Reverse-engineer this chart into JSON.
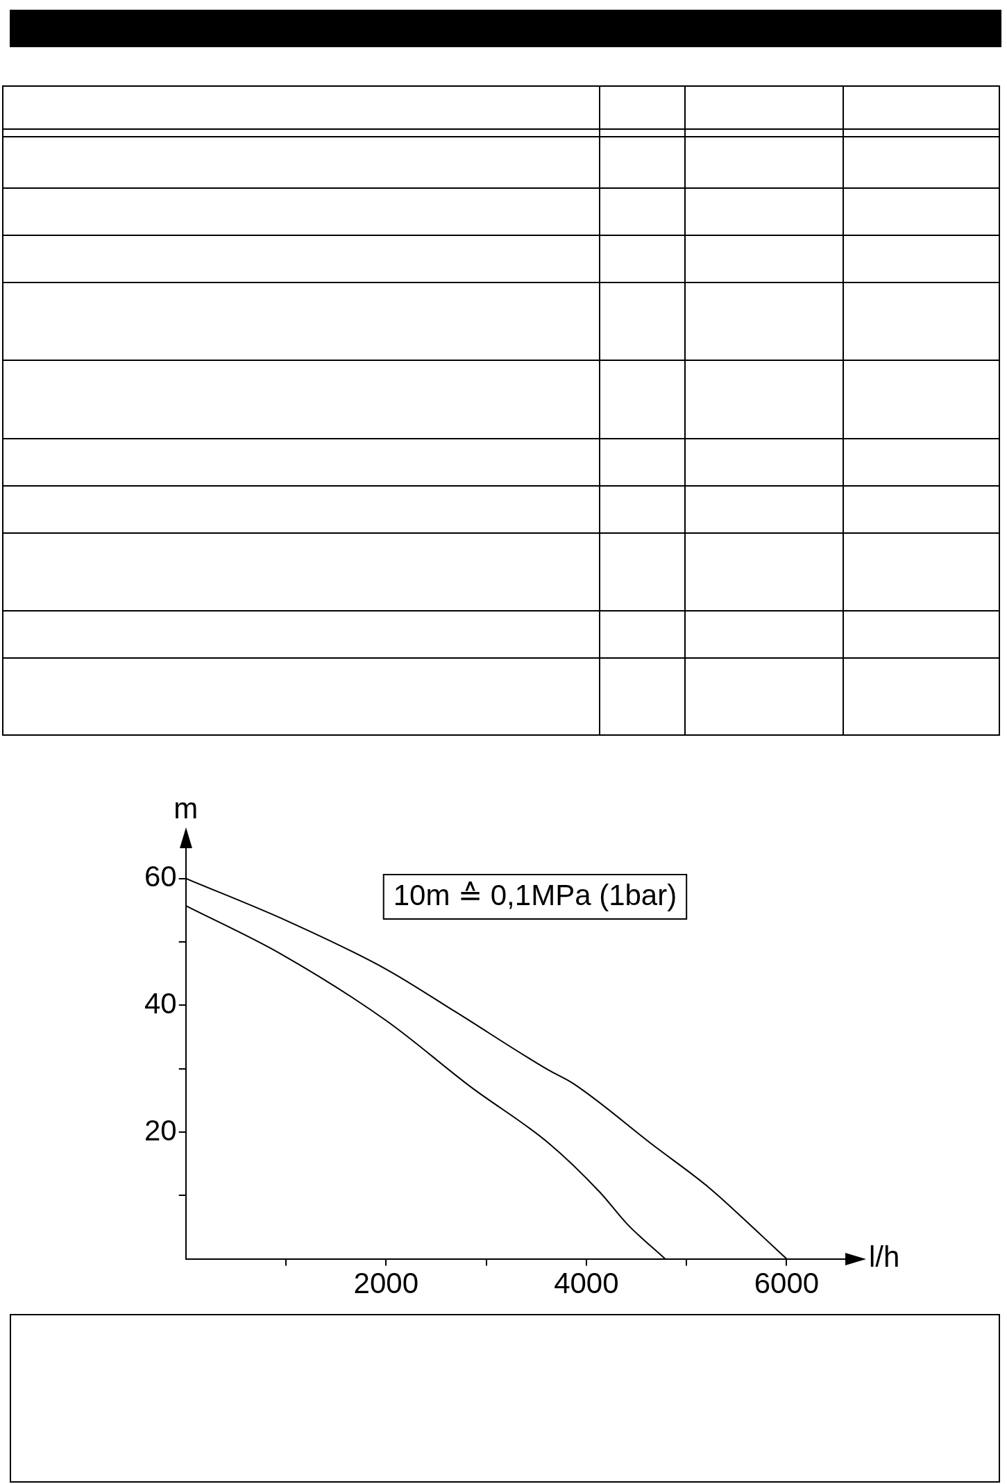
{
  "chart_data": {
    "type": "line",
    "xlabel": "l/h",
    "ylabel": "m",
    "annotations": [
      "10m ≙ 0,1MPa (1bar)"
    ],
    "xlim": [
      0,
      6600
    ],
    "ylim": [
      0,
      65
    ],
    "xticks": [
      {
        "value": 1000,
        "label": null
      },
      2000,
      {
        "value": 3000,
        "label": null
      },
      4000,
      {
        "value": 5000,
        "label": null
      },
      6000
    ],
    "yticks": [
      {
        "value": 10,
        "label": null
      },
      20,
      {
        "value": 30,
        "label": null
      },
      40,
      {
        "value": 50,
        "label": null
      },
      60
    ],
    "grid": false,
    "legend": false,
    "marker": "none",
    "line_style": "solid",
    "series": [
      {
        "color": "#000000",
        "x": [
          0,
          1013,
          2000,
          2690,
          3620,
          3865,
          4678,
          5220,
          5762,
          6000
        ],
        "values": [
          60,
          53.3,
          45.7,
          39,
          29.8,
          27.7,
          17.8,
          11.3,
          3.5,
          0
        ]
      },
      {
        "color": "#000000",
        "x": [
          0,
          949,
          2000,
          2848,
          3620,
          4136,
          4407,
          4786
        ],
        "values": [
          55.7,
          48.1,
          37.6,
          27.1,
          18.3,
          10.5,
          5.5,
          0
        ]
      }
    ]
  }
}
